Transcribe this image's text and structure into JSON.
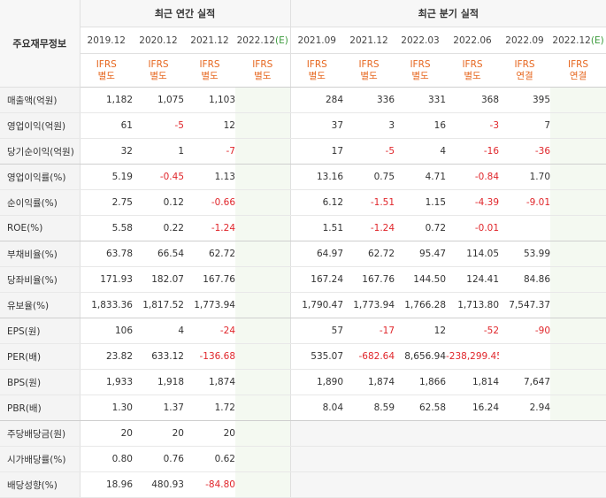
{
  "corner_label": "주요재무정보",
  "groups": {
    "annual": "최근 연간 실적",
    "quarterly": "최근 분기 실적"
  },
  "columns": [
    {
      "period": "2019.12",
      "acct": [
        "IFRS",
        "별도"
      ]
    },
    {
      "period": "2020.12",
      "acct": [
        "IFRS",
        "별도"
      ]
    },
    {
      "period": "2021.12",
      "acct": [
        "IFRS",
        "별도"
      ]
    },
    {
      "period": "2022.12",
      "est": "(E)",
      "acct": [
        "IFRS",
        "별도"
      ]
    },
    {
      "period": "2021.09",
      "acct": [
        "IFRS",
        "별도"
      ]
    },
    {
      "period": "2021.12",
      "acct": [
        "IFRS",
        "별도"
      ]
    },
    {
      "period": "2022.03",
      "acct": [
        "IFRS",
        "별도"
      ]
    },
    {
      "period": "2022.06",
      "acct": [
        "IFRS",
        "별도"
      ]
    },
    {
      "period": "2022.09",
      "acct": [
        "IFRS",
        "연결"
      ]
    },
    {
      "period": "2022.12",
      "est": "(E)",
      "acct": [
        "IFRS",
        "연결"
      ]
    }
  ],
  "rows": [
    {
      "label": "매출액(억원)",
      "values": [
        "1,182",
        "1,075",
        "1,103",
        "",
        "284",
        "336",
        "331",
        "368",
        "395",
        ""
      ]
    },
    {
      "label": "영업이익(억원)",
      "values": [
        "61",
        "-5",
        "12",
        "",
        "37",
        "3",
        "16",
        "-3",
        "7",
        ""
      ]
    },
    {
      "label": "당기순이익(억원)",
      "values": [
        "32",
        "1",
        "-7",
        "",
        "17",
        "-5",
        "4",
        "-16",
        "-36",
        ""
      ],
      "sep": true
    },
    {
      "label": "영업이익률(%)",
      "values": [
        "5.19",
        "-0.45",
        "1.13",
        "",
        "13.16",
        "0.75",
        "4.71",
        "-0.84",
        "1.70",
        ""
      ]
    },
    {
      "label": "순이익률(%)",
      "values": [
        "2.75",
        "0.12",
        "-0.66",
        "",
        "6.12",
        "-1.51",
        "1.15",
        "-4.39",
        "-9.01",
        ""
      ]
    },
    {
      "label": "ROE(%)",
      "values": [
        "5.58",
        "0.22",
        "-1.24",
        "",
        "1.51",
        "-1.24",
        "0.72",
        "-0.01",
        "",
        ""
      ],
      "sep": true
    },
    {
      "label": "부채비율(%)",
      "values": [
        "63.78",
        "66.54",
        "62.72",
        "",
        "64.97",
        "62.72",
        "95.47",
        "114.05",
        "53.99",
        ""
      ]
    },
    {
      "label": "당좌비율(%)",
      "values": [
        "171.93",
        "182.07",
        "167.76",
        "",
        "167.24",
        "167.76",
        "144.50",
        "124.41",
        "84.86",
        ""
      ]
    },
    {
      "label": "유보율(%)",
      "values": [
        "1,833.36",
        "1,817.52",
        "1,773.94",
        "",
        "1,790.47",
        "1,773.94",
        "1,766.28",
        "1,713.80",
        "7,547.37",
        ""
      ],
      "sep": true
    },
    {
      "label": "EPS(원)",
      "values": [
        "106",
        "4",
        "-24",
        "",
        "57",
        "-17",
        "12",
        "-52",
        "-90",
        ""
      ]
    },
    {
      "label": "PER(배)",
      "values": [
        "23.82",
        "633.12",
        "-136.68",
        "",
        "535.07",
        "-682.64",
        "8,656.94",
        "-238,299.45",
        "",
        ""
      ]
    },
    {
      "label": "BPS(원)",
      "values": [
        "1,933",
        "1,918",
        "1,874",
        "",
        "1,890",
        "1,874",
        "1,866",
        "1,814",
        "7,647",
        ""
      ]
    },
    {
      "label": "PBR(배)",
      "values": [
        "1.30",
        "1.37",
        "1.72",
        "",
        "8.04",
        "8.59",
        "62.58",
        "16.24",
        "2.94",
        ""
      ],
      "sep": true
    },
    {
      "label": "주당배당금(원)",
      "values": [
        "20",
        "20",
        "20",
        "",
        "",
        "",
        "",
        "",
        "",
        ""
      ],
      "blank_quarters": true
    },
    {
      "label": "시가배당률(%)",
      "values": [
        "0.80",
        "0.76",
        "0.62",
        "",
        "",
        "",
        "",
        "",
        "",
        ""
      ],
      "blank_quarters": true
    },
    {
      "label": "배당성향(%)",
      "values": [
        "18.96",
        "480.93",
        "-84.80",
        "",
        "",
        "",
        "",
        "",
        "",
        ""
      ],
      "blank_quarters": true
    }
  ]
}
